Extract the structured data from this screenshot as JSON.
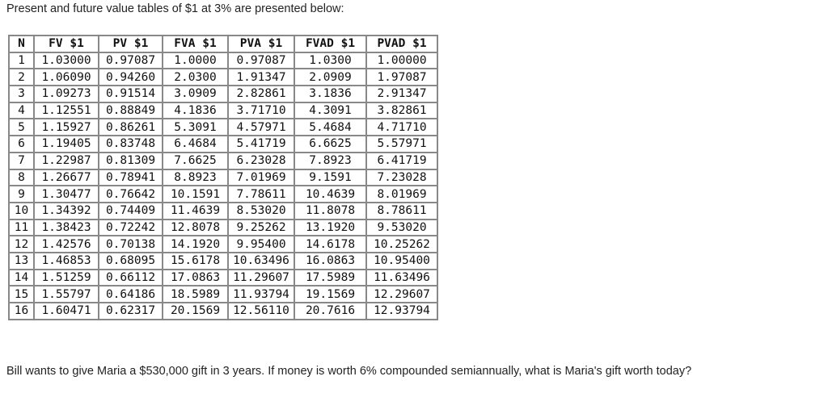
{
  "intro": "Present and future value tables of $1 at 3% are presented below:",
  "table": {
    "headers": [
      "N",
      "FV $1",
      "PV $1",
      "FVA $1",
      "PVA $1",
      "FVAD $1",
      "PVAD $1"
    ],
    "rows": [
      [
        "1",
        "1.03000",
        "0.97087",
        "1.0000",
        "0.97087",
        "1.0300",
        "1.00000"
      ],
      [
        "2",
        "1.06090",
        "0.94260",
        "2.0300",
        "1.91347",
        "2.0909",
        "1.97087"
      ],
      [
        "3",
        "1.09273",
        "0.91514",
        "3.0909",
        "2.82861",
        "3.1836",
        "2.91347"
      ],
      [
        "4",
        "1.12551",
        "0.88849",
        "4.1836",
        "3.71710",
        "4.3091",
        "3.82861"
      ],
      [
        "5",
        "1.15927",
        "0.86261",
        "5.3091",
        "4.57971",
        "5.4684",
        "4.71710"
      ],
      [
        "6",
        "1.19405",
        "0.83748",
        "6.4684",
        "5.41719",
        "6.6625",
        "5.57971"
      ],
      [
        "7",
        "1.22987",
        "0.81309",
        "7.6625",
        "6.23028",
        "7.8923",
        "6.41719"
      ],
      [
        "8",
        "1.26677",
        "0.78941",
        "8.8923",
        "7.01969",
        "9.1591",
        "7.23028"
      ],
      [
        "9",
        "1.30477",
        "0.76642",
        "10.1591",
        "7.78611",
        "10.4639",
        "8.01969"
      ],
      [
        "10",
        "1.34392",
        "0.74409",
        "11.4639",
        "8.53020",
        "11.8078",
        "8.78611"
      ],
      [
        "11",
        "1.38423",
        "0.72242",
        "12.8078",
        "9.25262",
        "13.1920",
        "9.53020"
      ],
      [
        "12",
        "1.42576",
        "0.70138",
        "14.1920",
        "9.95400",
        "14.6178",
        "10.25262"
      ],
      [
        "13",
        "1.46853",
        "0.68095",
        "15.6178",
        "10.63496",
        "16.0863",
        "10.95400"
      ],
      [
        "14",
        "1.51259",
        "0.66112",
        "17.0863",
        "11.29607",
        "17.5989",
        "11.63496"
      ],
      [
        "15",
        "1.55797",
        "0.64186",
        "18.5989",
        "11.93794",
        "19.1569",
        "12.29607"
      ],
      [
        "16",
        "1.60471",
        "0.62317",
        "20.1569",
        "12.56110",
        "20.7616",
        "12.93794"
      ]
    ]
  },
  "question": "Bill wants to give Maria a $530,000 gift in 3 years. If money is worth 6% compounded semiannually, what is Maria's gift worth today?"
}
